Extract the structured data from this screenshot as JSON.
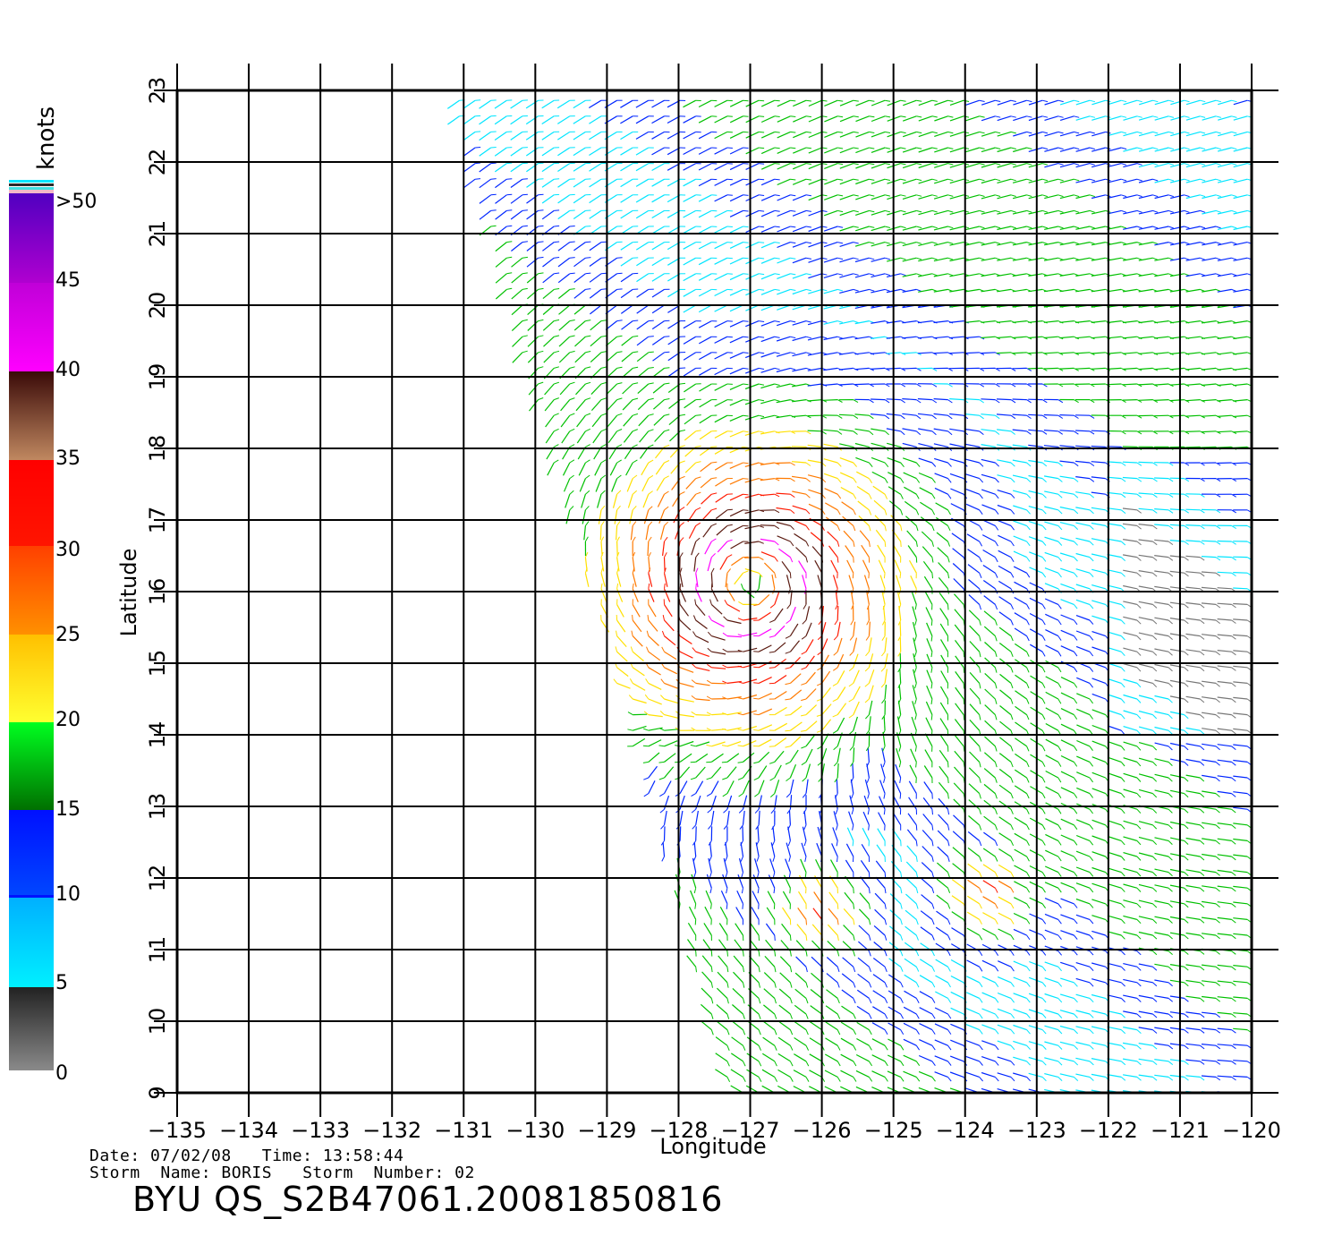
{
  "chart_data": {
    "type": "wind-vector-map",
    "xlabel": "Longitude",
    "ylabel": "Latitude",
    "xlim": [
      -135,
      -120
    ],
    "ylim": [
      9,
      23
    ],
    "x_ticks": [
      -135,
      -134,
      -133,
      -132,
      -131,
      -130,
      -129,
      -128,
      -127,
      -126,
      -125,
      -124,
      -123,
      -122,
      -121,
      -120
    ],
    "y_ticks": [
      9,
      10,
      11,
      12,
      13,
      14,
      15,
      16,
      17,
      18,
      19,
      20,
      21,
      22,
      23
    ],
    "grid": true,
    "storm_center": {
      "lon": -127.0,
      "lat": 16.1
    },
    "secondary_wind_max": [
      {
        "lon": -123.6,
        "lat": 11.8
      },
      {
        "lon": -126.0,
        "lat": 11.5
      }
    ]
  },
  "legend": {
    "unit": "knots",
    "labels": [
      ">50",
      "45",
      "40",
      "35",
      "30",
      "25",
      "20",
      "15",
      "10",
      "5",
      "0"
    ],
    "colors": {
      "0-5": "#777777",
      "5-10": "#00e5ff",
      "10-15": "#0026ff",
      "15-20": "#00c000",
      "20-25": "#ffe000",
      "25-30": "#ff7a00",
      "30-35": "#ff1a00",
      "35-40": "#5a1a10",
      "40-45": "#ff00ff",
      "45-50": "#8a00d0"
    }
  },
  "info": {
    "date_label": "Date:",
    "date": "07/02/08",
    "time_label": "Time:",
    "time": "13:58:44",
    "storm_name_label": "Storm  Name:",
    "storm_name": "BORIS",
    "storm_number_label": "Storm  Number:",
    "storm_number": "02"
  },
  "product_id": "BYU  QS_S2B47061.20081850816"
}
